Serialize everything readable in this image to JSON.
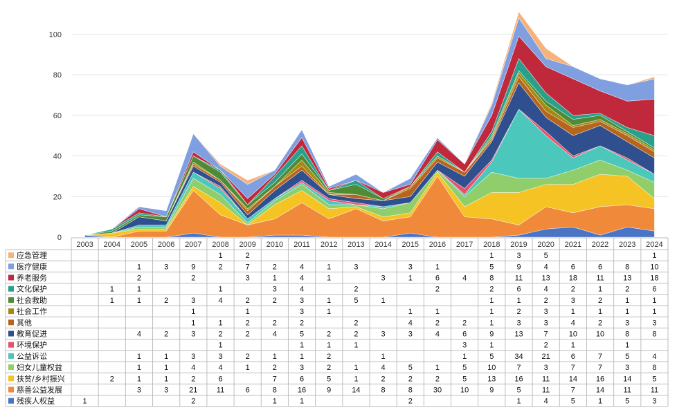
{
  "chart_data": {
    "type": "area",
    "stacked": true,
    "x": [
      "2003",
      "2004",
      "2005",
      "2006",
      "2007",
      "2008",
      "2009",
      "2010",
      "2011",
      "2012",
      "2013",
      "2014",
      "2015",
      "2016",
      "2017",
      "2018",
      "2019",
      "2020",
      "2021",
      "2022",
      "2023",
      "2024"
    ],
    "ylim": [
      0,
      110
    ],
    "yticks": [
      0,
      20,
      40,
      60,
      80,
      100
    ],
    "grid": true,
    "legend": "data-table-below",
    "series": [
      {
        "name": "残疾人权益",
        "color": "#4a74c4",
        "values": [
          1,
          null,
          null,
          null,
          2,
          null,
          null,
          1,
          1,
          null,
          null,
          null,
          2,
          null,
          null,
          null,
          1,
          4,
          5,
          1,
          5,
          3
        ]
      },
      {
        "name": "慈善公益发展",
        "color": "#f08a3a",
        "values": [
          null,
          null,
          3,
          3,
          21,
          11,
          6,
          8,
          16,
          9,
          14,
          8,
          8,
          30,
          10,
          9,
          5,
          11,
          7,
          14,
          11,
          11
        ]
      },
      {
        "name": "扶贫/乡村振兴",
        "color": "#f6c324",
        "values": [
          null,
          2,
          1,
          1,
          2,
          6,
          null,
          7,
          6,
          5,
          1,
          2,
          2,
          2,
          5,
          13,
          16,
          11,
          14,
          16,
          14,
          5
        ]
      },
      {
        "name": "妇女儿童权益",
        "color": "#8fce6a",
        "values": [
          null,
          null,
          1,
          1,
          4,
          4,
          1,
          2,
          3,
          2,
          1,
          4,
          5,
          1,
          5,
          10,
          7,
          3,
          7,
          7,
          3,
          8
        ]
      },
      {
        "name": "公益诉讼",
        "color": "#4cc7bc",
        "values": [
          null,
          null,
          1,
          1,
          3,
          3,
          2,
          1,
          1,
          2,
          null,
          1,
          null,
          null,
          1,
          5,
          34,
          21,
          6,
          7,
          5,
          4
        ]
      },
      {
        "name": "环境保护",
        "color": "#e8516b",
        "values": [
          null,
          null,
          null,
          null,
          null,
          1,
          null,
          null,
          1,
          1,
          1,
          null,
          null,
          null,
          3,
          1,
          null,
          2,
          1,
          null,
          1,
          null
        ]
      },
      {
        "name": "教育促进",
        "color": "#2f4f8f",
        "values": [
          null,
          null,
          4,
          2,
          3,
          2,
          2,
          4,
          5,
          2,
          2,
          3,
          3,
          4,
          6,
          9,
          13,
          7,
          10,
          10,
          8,
          8
        ]
      },
      {
        "name": "其他",
        "color": "#b5651d",
        "values": [
          null,
          null,
          null,
          null,
          1,
          1,
          2,
          2,
          2,
          null,
          2,
          null,
          4,
          2,
          2,
          1,
          3,
          3,
          4,
          2,
          3,
          3
        ]
      },
      {
        "name": "社会工作",
        "color": "#a58a12",
        "values": [
          null,
          null,
          null,
          null,
          1,
          null,
          1,
          null,
          3,
          1,
          null,
          null,
          1,
          1,
          null,
          1,
          2,
          3,
          1,
          1,
          1,
          1
        ]
      },
      {
        "name": "社会救助",
        "color": "#4f8a34",
        "values": [
          null,
          1,
          1,
          2,
          3,
          4,
          2,
          2,
          3,
          1,
          5,
          1,
          null,
          null,
          null,
          1,
          1,
          2,
          3,
          2,
          1,
          1
        ]
      },
      {
        "name": "文化保护",
        "color": "#2aa08a",
        "values": [
          null,
          1,
          1,
          null,
          null,
          1,
          null,
          3,
          4,
          null,
          2,
          null,
          null,
          2,
          null,
          2,
          6,
          4,
          2,
          1,
          2,
          6
        ]
      },
      {
        "name": "养老服务",
        "color": "#c0283c",
        "values": [
          null,
          null,
          2,
          null,
          2,
          null,
          3,
          1,
          4,
          1,
          null,
          3,
          1,
          6,
          4,
          8,
          11,
          13,
          18,
          11,
          13,
          18
        ]
      },
      {
        "name": "医疗健康",
        "color": "#7f9fe0",
        "values": [
          null,
          null,
          1,
          3,
          9,
          2,
          7,
          2,
          4,
          1,
          3,
          null,
          3,
          1,
          null,
          5,
          9,
          4,
          6,
          6,
          8,
          10
        ]
      },
      {
        "name": "应急管理",
        "color": "#f7b27a",
        "values": [
          null,
          null,
          null,
          null,
          null,
          1,
          2,
          null,
          null,
          null,
          null,
          null,
          null,
          null,
          null,
          1,
          3,
          5,
          null,
          null,
          null,
          1
        ]
      }
    ]
  }
}
